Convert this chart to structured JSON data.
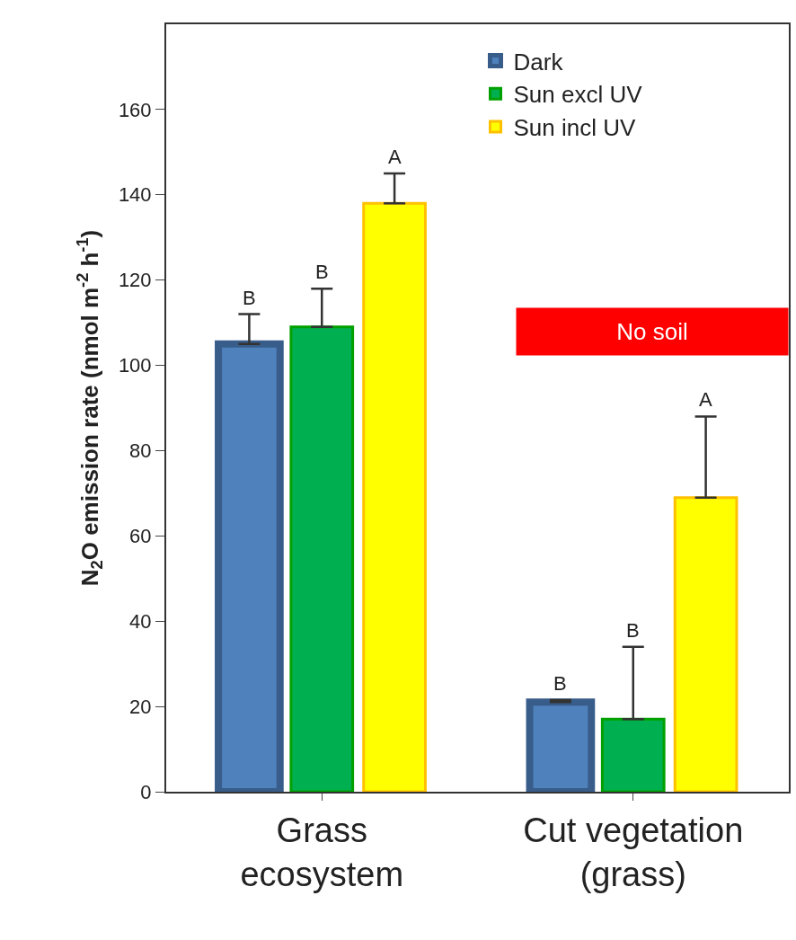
{
  "chart_data": {
    "type": "bar",
    "ylabel": "N$_{2}$O emission rate (nmol m$^{-2}$ h$^{-1}$)",
    "categories": [
      "Grass ecosystem",
      "Cut vegetation (grass)"
    ],
    "series": [
      {
        "name": "Dark",
        "color": "#4f81bd",
        "values": [
          105,
          21
        ],
        "errors": [
          [
            105,
            112
          ],
          [
            21,
            21.5
          ]
        ]
      },
      {
        "name": "Sun excl UV",
        "color": "#00b050",
        "values": [
          109,
          17
        ],
        "errors": [
          [
            109,
            118
          ],
          [
            17,
            34
          ]
        ]
      },
      {
        "name": "Sun incl UV",
        "color": "#ffff00",
        "values": [
          138,
          69
        ],
        "errors": [
          [
            138,
            145
          ],
          [
            69,
            88
          ]
        ]
      }
    ],
    "ylim": [
      0,
      180
    ],
    "yticks": [
      0,
      20,
      40,
      60,
      80,
      100,
      120,
      140,
      160
    ],
    "annotations": [
      "No soil",
      "B",
      "B",
      "A",
      "B",
      "B",
      "A"
    ],
    "legend": "top right"
  }
}
